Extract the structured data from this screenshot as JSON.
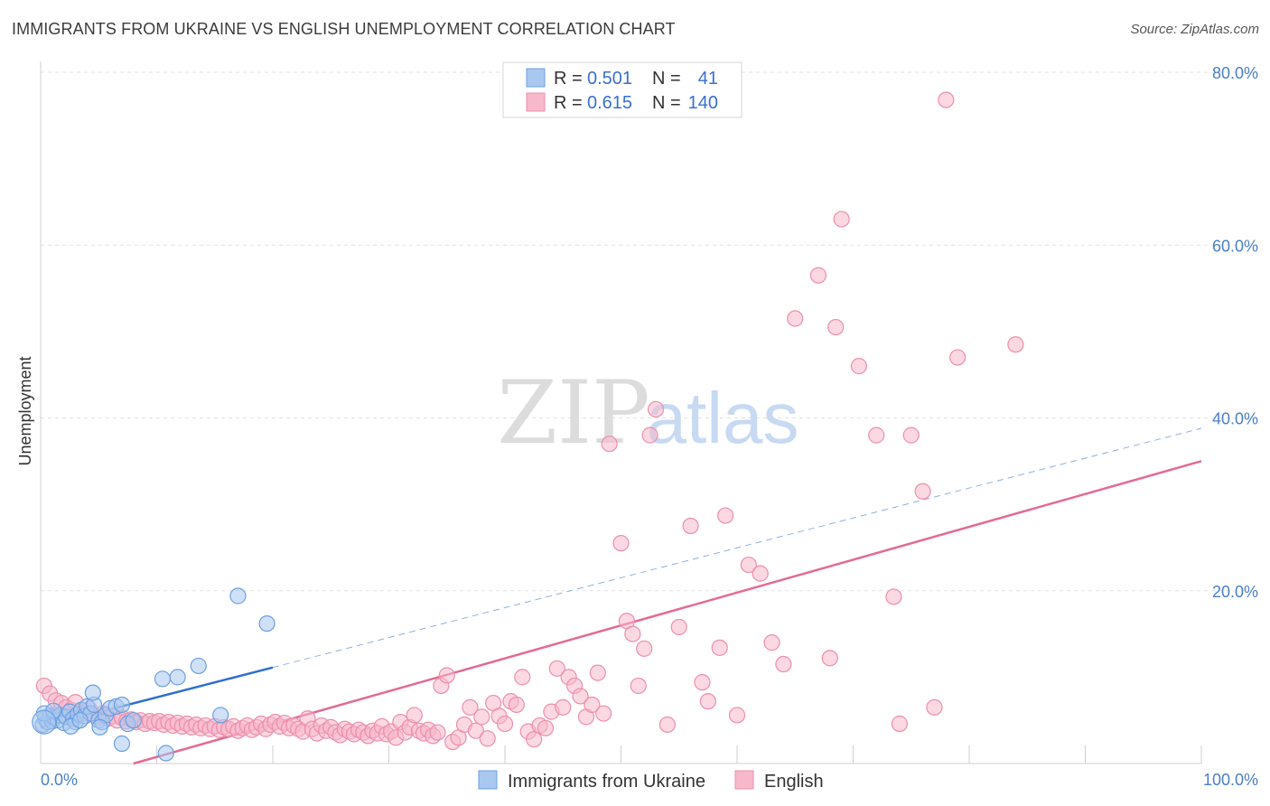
{
  "title": "IMMIGRANTS FROM UKRAINE VS ENGLISH UNEMPLOYMENT CORRELATION CHART",
  "source": "Source: ZipAtlas.com",
  "watermark": {
    "zip": "ZIP",
    "atlas": "atlas"
  },
  "colors": {
    "blue_fill": "#a9c8f0",
    "blue_stroke": "#6d9fe0",
    "blue_line": "#2f6fd0",
    "pink_fill": "#f7b8cb",
    "pink_stroke": "#ec8fae",
    "pink_line": "#e36a97",
    "grid": "#e2e2e2",
    "tick_label": "#4a7fc8"
  },
  "legend": {
    "rows": [
      {
        "r_label": "R =",
        "r_value": "0.501",
        "n_label": "N =",
        "n_value": "41",
        "color": "blue"
      },
      {
        "r_label": "R =",
        "r_value": "0.615",
        "n_label": "N =",
        "n_value": "140",
        "color": "pink"
      }
    ]
  },
  "bottom_legend": [
    {
      "label": "Immigrants from Ukraine",
      "color": "blue"
    },
    {
      "label": "English",
      "color": "pink"
    }
  ],
  "chart_data": {
    "type": "scatter",
    "xlabel": "",
    "ylabel": "Unemployment",
    "xlim": [
      0,
      100
    ],
    "ylim": [
      0,
      80
    ],
    "x_tick_labels": [
      {
        "value": 0,
        "label": "0.0%"
      },
      {
        "value": 100,
        "label": "100.0%"
      }
    ],
    "y_tick_labels": [
      {
        "value": 20,
        "label": "20.0%"
      },
      {
        "value": 40,
        "label": "40.0%"
      },
      {
        "value": 60,
        "label": "60.0%"
      },
      {
        "value": 80,
        "label": "80.0%"
      }
    ],
    "grid": "horizontal dashed",
    "series": [
      {
        "key": "ukraine",
        "name": "Immigrants from Ukraine",
        "color": "#a9c8f0",
        "points": [
          [
            0.2,
            4.5
          ],
          [
            0.4,
            5.2
          ],
          [
            0.6,
            4.8
          ],
          [
            0.8,
            5.5
          ],
          [
            1.0,
            4.9
          ],
          [
            1.2,
            5.3
          ],
          [
            1.5,
            5.0
          ],
          [
            1.7,
            5.6
          ],
          [
            2.0,
            4.7
          ],
          [
            2.2,
            5.4
          ],
          [
            2.5,
            6.0
          ],
          [
            2.8,
            5.2
          ],
          [
            3.0,
            4.8
          ],
          [
            3.2,
            5.7
          ],
          [
            3.5,
            6.2
          ],
          [
            3.8,
            5.5
          ],
          [
            4.0,
            6.6
          ],
          [
            4.3,
            5.8
          ],
          [
            4.6,
            6.8
          ],
          [
            5.0,
            5.0
          ],
          [
            5.3,
            4.8
          ],
          [
            5.6,
            5.6
          ],
          [
            6.0,
            6.4
          ],
          [
            6.5,
            6.6
          ],
          [
            7.0,
            6.8
          ],
          [
            7.5,
            4.6
          ],
          [
            8.0,
            5.0
          ],
          [
            0.3,
            5.8
          ],
          [
            1.1,
            6.1
          ],
          [
            2.6,
            4.3
          ],
          [
            3.4,
            5.0
          ],
          [
            4.5,
            8.2
          ],
          [
            5.1,
            4.2
          ],
          [
            7.0,
            2.3
          ],
          [
            10.5,
            9.8
          ],
          [
            11.8,
            10.0
          ],
          [
            13.6,
            11.3
          ],
          [
            15.5,
            5.6
          ],
          [
            17.0,
            19.4
          ],
          [
            19.5,
            16.2
          ],
          [
            10.8,
            1.2
          ]
        ]
      },
      {
        "key": "english",
        "name": "English",
        "color": "#f7b8cb",
        "points": [
          [
            0.3,
            9.0
          ],
          [
            0.8,
            8.1
          ],
          [
            1.3,
            7.3
          ],
          [
            1.8,
            7.0
          ],
          [
            2.2,
            6.5
          ],
          [
            2.6,
            6.2
          ],
          [
            3.0,
            7.1
          ],
          [
            3.4,
            6.0
          ],
          [
            3.8,
            5.8
          ],
          [
            4.2,
            6.3
          ],
          [
            4.6,
            5.6
          ],
          [
            5.0,
            5.4
          ],
          [
            5.4,
            5.8
          ],
          [
            5.8,
            5.2
          ],
          [
            6.2,
            5.5
          ],
          [
            6.6,
            5.0
          ],
          [
            7.0,
            5.3
          ],
          [
            7.4,
            4.9
          ],
          [
            7.8,
            5.1
          ],
          [
            8.2,
            4.8
          ],
          [
            8.6,
            5.0
          ],
          [
            9.0,
            4.6
          ],
          [
            9.4,
            4.9
          ],
          [
            9.8,
            4.7
          ],
          [
            10.2,
            4.9
          ],
          [
            10.6,
            4.5
          ],
          [
            11.0,
            4.8
          ],
          [
            11.4,
            4.4
          ],
          [
            11.8,
            4.7
          ],
          [
            12.2,
            4.3
          ],
          [
            12.6,
            4.6
          ],
          [
            13.0,
            4.2
          ],
          [
            13.4,
            4.5
          ],
          [
            13.8,
            4.1
          ],
          [
            14.2,
            4.4
          ],
          [
            14.6,
            4.0
          ],
          [
            15.0,
            4.3
          ],
          [
            15.4,
            3.9
          ],
          [
            15.8,
            4.2
          ],
          [
            16.2,
            4.0
          ],
          [
            16.6,
            4.3
          ],
          [
            17.0,
            3.8
          ],
          [
            17.4,
            4.1
          ],
          [
            17.8,
            4.4
          ],
          [
            18.2,
            3.9
          ],
          [
            18.6,
            4.2
          ],
          [
            19.0,
            4.6
          ],
          [
            19.4,
            4.0
          ],
          [
            19.8,
            4.5
          ],
          [
            20.2,
            4.8
          ],
          [
            20.6,
            4.3
          ],
          [
            21.0,
            4.7
          ],
          [
            21.4,
            4.1
          ],
          [
            21.8,
            4.4
          ],
          [
            22.2,
            4.0
          ],
          [
            22.6,
            3.7
          ],
          [
            23.0,
            5.2
          ],
          [
            23.4,
            4.0
          ],
          [
            23.8,
            3.5
          ],
          [
            24.2,
            4.4
          ],
          [
            24.6,
            3.8
          ],
          [
            25.0,
            4.2
          ],
          [
            25.4,
            3.6
          ],
          [
            25.8,
            3.3
          ],
          [
            26.2,
            4.0
          ],
          [
            26.6,
            3.7
          ],
          [
            27.0,
            3.4
          ],
          [
            27.4,
            3.9
          ],
          [
            27.8,
            3.6
          ],
          [
            28.2,
            3.2
          ],
          [
            28.6,
            3.8
          ],
          [
            29.0,
            3.5
          ],
          [
            29.4,
            4.3
          ],
          [
            29.8,
            3.4
          ],
          [
            30.2,
            3.7
          ],
          [
            30.6,
            3.0
          ],
          [
            31.0,
            4.8
          ],
          [
            31.4,
            3.6
          ],
          [
            31.8,
            4.2
          ],
          [
            32.2,
            5.6
          ],
          [
            32.6,
            3.8
          ],
          [
            33.0,
            3.5
          ],
          [
            33.4,
            3.9
          ],
          [
            33.8,
            3.2
          ],
          [
            34.2,
            3.6
          ],
          [
            34.5,
            9.0
          ],
          [
            35.0,
            10.2
          ],
          [
            35.5,
            2.5
          ],
          [
            36.0,
            3.0
          ],
          [
            36.5,
            4.5
          ],
          [
            37.0,
            6.5
          ],
          [
            37.5,
            3.8
          ],
          [
            38.0,
            5.4
          ],
          [
            38.5,
            2.9
          ],
          [
            39.0,
            7.0
          ],
          [
            39.5,
            5.5
          ],
          [
            40.0,
            4.6
          ],
          [
            40.5,
            7.2
          ],
          [
            41.0,
            6.8
          ],
          [
            41.5,
            10.0
          ],
          [
            42.0,
            3.7
          ],
          [
            42.5,
            2.8
          ],
          [
            43.0,
            4.4
          ],
          [
            43.5,
            4.1
          ],
          [
            44.0,
            6.0
          ],
          [
            44.5,
            11.0
          ],
          [
            45.0,
            6.5
          ],
          [
            45.5,
            10.0
          ],
          [
            46.0,
            9.0
          ],
          [
            46.5,
            7.8
          ],
          [
            47.0,
            5.4
          ],
          [
            47.5,
            6.8
          ],
          [
            48.0,
            10.5
          ],
          [
            48.5,
            5.8
          ],
          [
            49.0,
            37.0
          ],
          [
            50.0,
            25.5
          ],
          [
            50.5,
            16.5
          ],
          [
            51.0,
            15.0
          ],
          [
            51.5,
            9.0
          ],
          [
            52.0,
            13.3
          ],
          [
            52.5,
            38.0
          ],
          [
            53.0,
            41.0
          ],
          [
            54.0,
            4.5
          ],
          [
            55.0,
            15.8
          ],
          [
            56.0,
            27.5
          ],
          [
            57.0,
            9.4
          ],
          [
            57.5,
            7.2
          ],
          [
            58.5,
            13.4
          ],
          [
            59.0,
            28.7
          ],
          [
            60.0,
            5.6
          ],
          [
            61.0,
            23.0
          ],
          [
            62.0,
            22.0
          ],
          [
            63.0,
            14.0
          ],
          [
            64.0,
            11.5
          ],
          [
            65.0,
            51.5
          ],
          [
            67.0,
            56.5
          ],
          [
            68.0,
            12.2
          ],
          [
            68.5,
            50.5
          ],
          [
            69.0,
            63.0
          ],
          [
            70.5,
            46.0
          ],
          [
            72.0,
            38.0
          ],
          [
            73.5,
            19.3
          ]
        ]
      }
    ],
    "extra_english_points": [
      [
        74.0,
        4.6
      ],
      [
        75.0,
        38.0
      ],
      [
        76.0,
        31.5
      ],
      [
        77.0,
        6.5
      ],
      [
        78.0,
        76.8
      ],
      [
        79.0,
        47.0
      ],
      [
        84.0,
        48.5
      ]
    ],
    "trend_lines": [
      {
        "series": "ukraine",
        "x0": 0,
        "y0": 4.2,
        "x1": 100,
        "y1": 38.8,
        "solid_until_x": 20
      },
      {
        "series": "english",
        "x0": 8,
        "y0": 0,
        "x1": 100,
        "y1": 35.0
      }
    ]
  }
}
